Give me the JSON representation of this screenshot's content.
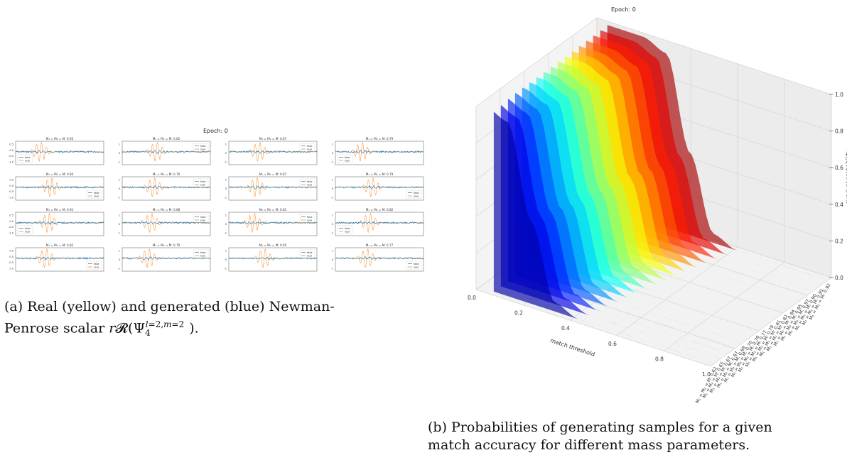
{
  "panel_a": {
    "epoch_label": "Epoch: 0",
    "legend": [
      "fake",
      "real"
    ],
    "yticks": [
      "0.5",
      "0.0",
      "-0.5",
      "-1.0"
    ],
    "yticks_alt": [
      "1",
      "0",
      "-1"
    ],
    "subplots": [
      "M₁ = M₂ = M: 0.92",
      "M₁ = M₂ = M: 0.62",
      "M₁ = M₂ = M: 0.67",
      "M₁ = M₂ = M: 0.79",
      "M₁ = M₂ = M: 0.84",
      "M₁ = M₂ = M: 0.70",
      "M₁ = M₂ = M: 0.87",
      "M₁ = M₂ = M: 0.79",
      "M₁ = M₂ = M: 0.91",
      "M₁ = M₂ = M: 0.68",
      "M₁ = M₂ = M: 0.81",
      "M₁ = M₂ = M: 0.82",
      "M₁ = M₂ = M: 0.82",
      "M₁ = M₂ = M: 0.70",
      "M₁ = M₂ = M: 0.65",
      "M₁ = M₂ = M: 0.77"
    ],
    "colors": {
      "fake": "#1f77b4",
      "real": "#ff7f0e"
    }
  },
  "panel_b": {
    "epoch_label": "Epoch: 0",
    "xlabel": "match threshold",
    "zlabel": "survival probability",
    "xticks": [
      "0.0",
      "0.2",
      "0.4",
      "0.6",
      "0.8",
      "1.0"
    ],
    "zticks": [
      "0.0",
      "0.2",
      "0.4",
      "0.6",
      "0.8",
      "1.0"
    ],
    "depth_labels": [
      "M₁ = M₂ = M: 0.62",
      "M₁ = M₂ = M: 0.65",
      "M₁ = M₂ = M: 0.67",
      "M₁ = M₂ = M: 0.67",
      "M₁ = M₂ = M: 0.68",
      "M₁ = M₂ = M: 0.70",
      "M₁ = M₂ = M: 0.76",
      "M₁ = M₂ = M: 0.77",
      "M₁ = M₂ = M: 0.79",
      "M₁ = M₂ = M: 0.81",
      "M₁ = M₂ = M: 0.82",
      "M₁ = M₂ = M: 0.84",
      "M₁ = M₂ = M: 0.85",
      "M₁ = M₂ = M: 0.87",
      "M₁ = M₂ = M: 0.90",
      "M₁ = M₂ = M: 0.91",
      "M₁ = M₂ = M: 0.92"
    ]
  },
  "chart_data": [
    {
      "type": "line",
      "title": "Epoch: 0",
      "series": [
        {
          "name": "fake"
        },
        {
          "name": "real"
        }
      ],
      "subplot_titles": [
        "M₁ = M₂ = M: 0.92",
        "M₁ = M₂ = M: 0.62",
        "M₁ = M₂ = M: 0.67",
        "M₁ = M₂ = M: 0.79",
        "M₁ = M₂ = M: 0.84",
        "M₁ = M₂ = M: 0.70",
        "M₁ = M₂ = M: 0.87",
        "M₁ = M₂ = M: 0.79",
        "M₁ = M₂ = M: 0.91",
        "M₁ = M₂ = M: 0.68",
        "M₁ = M₂ = M: 0.81",
        "M₁ = M₂ = M: 0.82",
        "M₁ = M₂ = M: 0.82",
        "M₁ = M₂ = M: 0.70",
        "M₁ = M₂ = M: 0.65",
        "M₁ = M₂ = M: 0.77"
      ],
      "ylim": [
        -1,
        1
      ]
    },
    {
      "type": "area",
      "title": "Epoch: 0",
      "xlabel": "match threshold",
      "zlabel": "survival probability",
      "xlim": [
        0,
        1
      ],
      "zlim": [
        0,
        1
      ],
      "categories": [
        "M₁ = M₂ = M: 0.62",
        "M₁ = M₂ = M: 0.65",
        "M₁ = M₂ = M: 0.67",
        "M₁ = M₂ = M: 0.67",
        "M₁ = M₂ = M: 0.68",
        "M₁ = M₂ = M: 0.70",
        "M₁ = M₂ = M: 0.76",
        "M₁ = M₂ = M: 0.77",
        "M₁ = M₂ = M: 0.79",
        "M₁ = M₂ = M: 0.81",
        "M₁ = M₂ = M: 0.82",
        "M₁ = M₂ = M: 0.84",
        "M₁ = M₂ = M: 0.85",
        "M₁ = M₂ = M: 0.87",
        "M₁ = M₂ = M: 0.90",
        "M₁ = M₂ = M: 0.91",
        "M₁ = M₂ = M: 0.92"
      ],
      "x": [
        0.0,
        0.1,
        0.2,
        0.3,
        0.4,
        0.5,
        0.6,
        0.7,
        0.8,
        0.9,
        1.0
      ],
      "values": [
        1.0,
        0.95,
        0.45,
        0.05,
        0.0,
        0.0,
        0.0,
        0.0,
        0.0,
        0.0,
        0.0
      ],
      "grid": true
    }
  ],
  "captions": {
    "a_line1": "(a) Real (yellow) and generated (blue) Newman-",
    "a_line2_prefix": "Penrose scalar ",
    "b_line1": "(b) Probabilities of generating samples for a given",
    "b_line2": "match accuracy for different mass parameters."
  }
}
